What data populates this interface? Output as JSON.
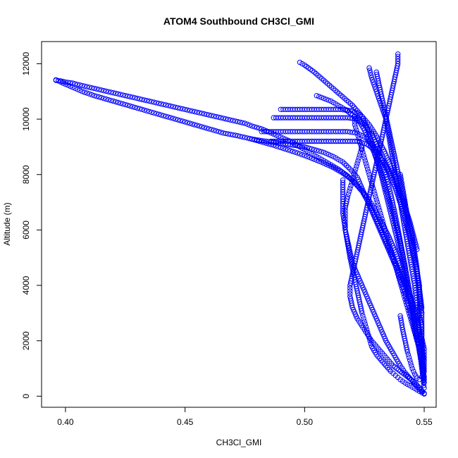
{
  "chart_data": {
    "type": "scatter",
    "title": "ATOM4 Southbound CH3Cl_GMI",
    "xlabel": "CH3Cl_GMI",
    "ylabel": "Altitude (m)",
    "xlim": [
      0.39,
      0.555
    ],
    "ylim": [
      -400,
      12800
    ],
    "x_ticks": [
      0.4,
      0.45,
      0.5,
      0.55
    ],
    "x_tick_labels": [
      "0.40",
      "0.45",
      "0.50",
      "0.55"
    ],
    "y_ticks": [
      0,
      2000,
      4000,
      6000,
      8000,
      10000,
      12000
    ],
    "y_tick_labels": [
      "0",
      "2000",
      "4000",
      "6000",
      "8000",
      "10000",
      "12000"
    ],
    "marker": "open-circle",
    "color": "#0000ff",
    "grid": false,
    "legend": "none",
    "series": [
      {
        "x": [
          0.396,
          0.398,
          0.4,
          0.403,
          0.405,
          0.41,
          0.415,
          0.42,
          0.425,
          0.43,
          0.435,
          0.44,
          0.445,
          0.45,
          0.455,
          0.46,
          0.465,
          0.47,
          0.475,
          0.478,
          0.482,
          0.486,
          0.49,
          0.494,
          0.498,
          0.502,
          0.506,
          0.51,
          0.514,
          0.518,
          0.521,
          0.524,
          0.526,
          0.528,
          0.53,
          0.532,
          0.534,
          0.536,
          0.538,
          0.54,
          0.542,
          0.544,
          0.546,
          0.548,
          0.549,
          0.55
        ],
        "y": [
          11400,
          11380,
          11340,
          11300,
          11250,
          11150,
          11050,
          10950,
          10850,
          10750,
          10650,
          10550,
          10450,
          10350,
          10250,
          10150,
          10050,
          9950,
          9850,
          9750,
          9650,
          9500,
          9350,
          9200,
          9000,
          8800,
          8600,
          8400,
          8200,
          7950,
          7700,
          7400,
          7100,
          6800,
          6400,
          6000,
          5600,
          5200,
          4800,
          4400,
          4000,
          3500,
          3000,
          2400,
          1800,
          1200
        ]
      },
      {
        "x": [
          0.396,
          0.399,
          0.403,
          0.407,
          0.412,
          0.418,
          0.424,
          0.43,
          0.436,
          0.442,
          0.448,
          0.454,
          0.46,
          0.466,
          0.472,
          0.477,
          0.482,
          0.487,
          0.492,
          0.497,
          0.502,
          0.507,
          0.512,
          0.516,
          0.52,
          0.523,
          0.526,
          0.529,
          0.532,
          0.535,
          0.538,
          0.541,
          0.544,
          0.547,
          0.549
        ],
        "y": [
          11420,
          11300,
          11150,
          11000,
          10850,
          10700,
          10550,
          10400,
          10250,
          10100,
          9950,
          9800,
          9650,
          9500,
          9400,
          9300,
          9180,
          9060,
          8920,
          8780,
          8620,
          8450,
          8250,
          8050,
          7800,
          7500,
          7200,
          6800,
          6300,
          5800,
          5200,
          4500,
          3700,
          2800,
          1800
        ]
      },
      {
        "x": [
          0.477,
          0.48,
          0.484,
          0.488,
          0.492,
          0.496,
          0.5,
          0.504,
          0.508,
          0.512,
          0.516,
          0.519,
          0.522,
          0.524,
          0.526,
          0.528,
          0.53,
          0.532,
          0.534,
          0.536,
          0.538,
          0.54,
          0.542,
          0.544,
          0.546,
          0.548,
          0.549,
          0.55
        ],
        "y": [
          9300,
          9250,
          9200,
          9150,
          9100,
          9050,
          9000,
          8900,
          8800,
          8650,
          8450,
          8200,
          7900,
          7500,
          7100,
          6700,
          6300,
          5900,
          5500,
          5100,
          4700,
          4200,
          3700,
          3100,
          2400,
          1700,
          1000,
          300
        ]
      },
      {
        "x": [
          0.498,
          0.5,
          0.504,
          0.508,
          0.512,
          0.516,
          0.52,
          0.524,
          0.526,
          0.528,
          0.53,
          0.532,
          0.534,
          0.536,
          0.538,
          0.54,
          0.542,
          0.544,
          0.546,
          0.548,
          0.55
        ],
        "y": [
          12050,
          11950,
          11700,
          11400,
          11100,
          10800,
          10500,
          10100,
          9700,
          9200,
          8600,
          8000,
          7300,
          6600,
          5900,
          5200,
          4400,
          3500,
          2600,
          1600,
          600
        ]
      },
      {
        "x": [
          0.527,
          0.528,
          0.53,
          0.532,
          0.534,
          0.535,
          0.536,
          0.537,
          0.538,
          0.539,
          0.54,
          0.541,
          0.542,
          0.543,
          0.544,
          0.545,
          0.546,
          0.547,
          0.548,
          0.549,
          0.55
        ],
        "y": [
          11850,
          11500,
          11000,
          10500,
          10000,
          9500,
          9000,
          8500,
          8000,
          7500,
          7000,
          6500,
          6000,
          5500,
          5000,
          4500,
          4000,
          3200,
          2400,
          1500,
          500
        ]
      },
      {
        "x": [
          0.539,
          0.539,
          0.538,
          0.537,
          0.536,
          0.535,
          0.534,
          0.533,
          0.532,
          0.531,
          0.53,
          0.529,
          0.528,
          0.527,
          0.526,
          0.525,
          0.524,
          0.523,
          0.522,
          0.521,
          0.52,
          0.519,
          0.519,
          0.52,
          0.522,
          0.525,
          0.528,
          0.531,
          0.534,
          0.537,
          0.54,
          0.543,
          0.546,
          0.548,
          0.55
        ],
        "y": [
          12350,
          12000,
          11600,
          11200,
          10800,
          10400,
          10000,
          9600,
          9200,
          8800,
          8400,
          8000,
          7600,
          7200,
          6800,
          6400,
          6000,
          5600,
          5200,
          4800,
          4400,
          4000,
          3600,
          3200,
          2800,
          2400,
          2000,
          1700,
          1400,
          1100,
          900,
          700,
          500,
          300,
          100
        ]
      },
      {
        "x": [
          0.487,
          0.49,
          0.494,
          0.498,
          0.502,
          0.506,
          0.51,
          0.514,
          0.518,
          0.522,
          0.525,
          0.528,
          0.53,
          0.532,
          0.534,
          0.536,
          0.538,
          0.54,
          0.542,
          0.544,
          0.546,
          0.548,
          0.55
        ],
        "y": [
          10050,
          10050,
          10050,
          10050,
          10050,
          10050,
          10050,
          10050,
          10050,
          10000,
          9800,
          9500,
          9100,
          8600,
          8000,
          7300,
          6500,
          5600,
          4700,
          3700,
          2700,
          1700,
          700
        ]
      },
      {
        "x": [
          0.49,
          0.495,
          0.5,
          0.505,
          0.51,
          0.515,
          0.52,
          0.524,
          0.527,
          0.53,
          0.533,
          0.536,
          0.539,
          0.542,
          0.545,
          0.547,
          0.549
        ],
        "y": [
          10350,
          10350,
          10350,
          10350,
          10350,
          10350,
          10300,
          10100,
          9800,
          9400,
          8900,
          8300,
          7600,
          6800,
          5800,
          4600,
          3200
        ]
      },
      {
        "x": [
          0.482,
          0.486,
          0.49,
          0.494,
          0.498,
          0.502,
          0.506,
          0.51,
          0.514,
          0.518,
          0.522,
          0.526,
          0.529,
          0.532,
          0.535,
          0.538,
          0.541,
          0.544,
          0.547,
          0.549
        ],
        "y": [
          9550,
          9550,
          9550,
          9550,
          9550,
          9550,
          9550,
          9550,
          9550,
          9550,
          9500,
          9300,
          9000,
          8600,
          8100,
          7500,
          6700,
          5700,
          4500,
          3000
        ]
      },
      {
        "x": [
          0.486,
          0.49,
          0.494,
          0.498,
          0.502,
          0.506,
          0.51,
          0.514,
          0.518,
          0.522,
          0.526,
          0.529,
          0.532,
          0.535,
          0.538,
          0.541,
          0.544,
          0.547
        ],
        "y": [
          9200,
          9200,
          9200,
          9200,
          9200,
          9200,
          9200,
          9200,
          9200,
          9200,
          9100,
          8900,
          8600,
          8200,
          7700,
          7100,
          6300,
          5300
        ]
      },
      {
        "x": [
          0.505,
          0.508,
          0.511,
          0.514,
          0.517,
          0.52,
          0.523,
          0.525,
          0.527,
          0.529,
          0.531,
          0.533,
          0.535,
          0.537,
          0.539,
          0.541,
          0.543,
          0.545,
          0.547
        ],
        "y": [
          10850,
          10750,
          10650,
          10500,
          10350,
          10150,
          9900,
          9600,
          9200,
          8800,
          8300,
          7800,
          7200,
          6600,
          5900,
          5100,
          4200,
          3200,
          2100
        ]
      },
      {
        "x": [
          0.521,
          0.521,
          0.522,
          0.523,
          0.524,
          0.525,
          0.526,
          0.527,
          0.528,
          0.529,
          0.53,
          0.531,
          0.532,
          0.533,
          0.534,
          0.535,
          0.536,
          0.537,
          0.538,
          0.539,
          0.54,
          0.541,
          0.542,
          0.543,
          0.544,
          0.545,
          0.546,
          0.547,
          0.548,
          0.549
        ],
        "y": [
          10100,
          9800,
          9500,
          9200,
          8900,
          8600,
          8300,
          8000,
          7700,
          7400,
          7100,
          6800,
          6500,
          6200,
          5900,
          5600,
          5300,
          5000,
          4700,
          4400,
          4100,
          3800,
          3500,
          3200,
          2900,
          2600,
          2300,
          2000,
          1700,
          1400
        ]
      },
      {
        "x": [
          0.524,
          0.523,
          0.522,
          0.521,
          0.52,
          0.519,
          0.518,
          0.517,
          0.517,
          0.517,
          0.518,
          0.519,
          0.52,
          0.522,
          0.524,
          0.526,
          0.528,
          0.53,
          0.532,
          0.534,
          0.536,
          0.538,
          0.54,
          0.542,
          0.544,
          0.546,
          0.548,
          0.55
        ],
        "y": [
          9000,
          8700,
          8400,
          8100,
          7800,
          7500,
          7200,
          6800,
          6400,
          6000,
          5600,
          5200,
          4800,
          4400,
          4000,
          3600,
          3200,
          2800,
          2400,
          2000,
          1700,
          1400,
          1100,
          850,
          650,
          450,
          250,
          100
        ]
      },
      {
        "x": [
          0.516,
          0.516,
          0.516,
          0.517,
          0.518,
          0.519,
          0.52,
          0.521,
          0.522,
          0.523,
          0.524,
          0.525,
          0.526,
          0.527,
          0.528,
          0.53,
          0.532,
          0.534,
          0.536,
          0.538,
          0.54,
          0.542,
          0.544,
          0.546,
          0.548,
          0.55
        ],
        "y": [
          7800,
          7200,
          6600,
          6000,
          5500,
          5000,
          4600,
          4200,
          3800,
          3400,
          3000,
          2700,
          2400,
          2100,
          1800,
          1500,
          1300,
          1100,
          900,
          750,
          600,
          480,
          380,
          280,
          180,
          80
        ]
      },
      {
        "x": [
          0.548,
          0.548,
          0.549,
          0.549,
          0.55,
          0.55,
          0.55,
          0.549,
          0.548,
          0.547,
          0.546,
          0.545,
          0.544,
          0.543,
          0.542,
          0.541,
          0.54
        ],
        "y": [
          3300,
          2900,
          2500,
          2100,
          1700,
          1300,
          900,
          700,
          600,
          650,
          800,
          1000,
          1300,
          1600,
          2000,
          2400,
          2900
        ]
      },
      {
        "x": [
          0.54,
          0.541,
          0.542,
          0.543,
          0.544,
          0.545,
          0.546,
          0.547,
          0.548,
          0.548,
          0.549,
          0.549,
          0.55
        ],
        "y": [
          8000,
          7500,
          7000,
          6500,
          6000,
          5500,
          5000,
          4500,
          4000,
          3500,
          3000,
          2000,
          500
        ]
      },
      {
        "x": [
          0.53,
          0.531,
          0.532,
          0.533,
          0.534,
          0.535,
          0.536,
          0.537,
          0.538,
          0.539,
          0.54,
          0.541,
          0.542
        ],
        "y": [
          11700,
          11300,
          10900,
          10500,
          10100,
          9700,
          9300,
          8900,
          8500,
          8100,
          7700,
          7300,
          6900
        ]
      }
    ]
  }
}
